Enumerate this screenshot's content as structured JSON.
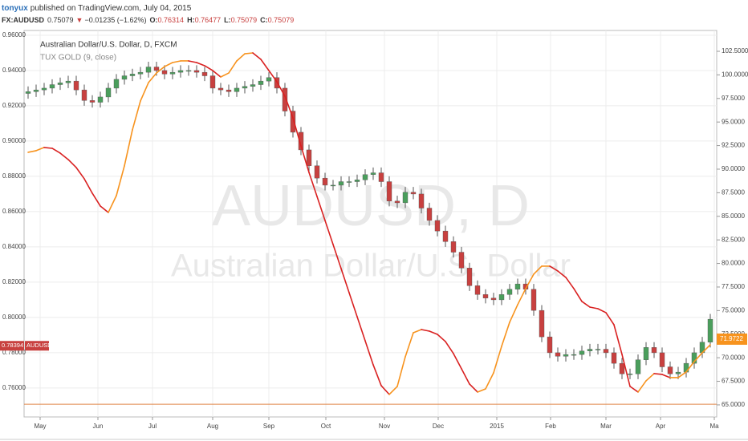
{
  "chart_data": {
    "type": "candlestick",
    "header": {
      "author": "tonyux",
      "published": "published on TradingView.com, July 04, 2015",
      "symbol": "FX:AUDUSD",
      "last": 0.75079,
      "change": "−0.01235 (−1.62%)",
      "open_label": "O:",
      "open": 0.76314,
      "high_label": "H:",
      "high": 0.76477,
      "low_label": "L:",
      "low": 0.75079,
      "close_label": "C:",
      "close": 0.75079
    },
    "legend": {
      "title": "Australian Dollar/U.S. Dollar, D, FXCM",
      "indicator": "TUX GOLD (9, close)"
    },
    "watermark": {
      "symbol": "AUDUSD, D",
      "name": "Australian Dollar/U.S. Dollar"
    },
    "up_color": "#4a9e5c",
    "down_color": "#c8403f",
    "wick_color": "#555555",
    "open": [
      0.927,
      0.928,
      0.929,
      0.93,
      0.932,
      0.933,
      0.934,
      0.929,
      0.923,
      0.922,
      0.925,
      0.93,
      0.935,
      0.937,
      0.938,
      0.939,
      0.942,
      0.94,
      0.938,
      0.939,
      0.94,
      0.94,
      0.939,
      0.937,
      0.93,
      0.929,
      0.928,
      0.93,
      0.931,
      0.932,
      0.934,
      0.936,
      0.93,
      0.917,
      0.905,
      0.895,
      0.886,
      0.879,
      0.875,
      0.875,
      0.877,
      0.877,
      0.878,
      0.881,
      0.882,
      0.877,
      0.866,
      0.865,
      0.871,
      0.87,
      0.862,
      0.855,
      0.849,
      0.843,
      0.837,
      0.828,
      0.818,
      0.813,
      0.811,
      0.81,
      0.813,
      0.816,
      0.819,
      0.816,
      0.804,
      0.789,
      0.78,
      0.778,
      0.779,
      0.779,
      0.781,
      0.782,
      0.782,
      0.78,
      0.774,
      0.768,
      0.768,
      0.776,
      0.783,
      0.78,
      0.772,
      0.768,
      0.769,
      0.774,
      0.78,
      0.786
    ],
    "high": [
      0.931,
      0.932,
      0.933,
      0.935,
      0.936,
      0.937,
      0.937,
      0.932,
      0.926,
      0.928,
      0.933,
      0.938,
      0.94,
      0.941,
      0.942,
      0.945,
      0.945,
      0.943,
      0.942,
      0.943,
      0.943,
      0.943,
      0.942,
      0.94,
      0.933,
      0.932,
      0.933,
      0.934,
      0.935,
      0.937,
      0.939,
      0.939,
      0.933,
      0.92,
      0.908,
      0.898,
      0.889,
      0.882,
      0.878,
      0.88,
      0.88,
      0.881,
      0.884,
      0.885,
      0.885,
      0.88,
      0.869,
      0.874,
      0.874,
      0.873,
      0.865,
      0.858,
      0.852,
      0.846,
      0.84,
      0.831,
      0.821,
      0.816,
      0.814,
      0.816,
      0.819,
      0.822,
      0.822,
      0.819,
      0.807,
      0.792,
      0.783,
      0.782,
      0.782,
      0.784,
      0.785,
      0.785,
      0.785,
      0.783,
      0.777,
      0.771,
      0.779,
      0.786,
      0.786,
      0.783,
      0.775,
      0.772,
      0.777,
      0.783,
      0.789,
      0.802
    ],
    "low": [
      0.924,
      0.925,
      0.926,
      0.927,
      0.929,
      0.93,
      0.926,
      0.92,
      0.919,
      0.919,
      0.922,
      0.927,
      0.932,
      0.934,
      0.935,
      0.936,
      0.937,
      0.935,
      0.935,
      0.936,
      0.937,
      0.936,
      0.934,
      0.927,
      0.926,
      0.925,
      0.925,
      0.927,
      0.928,
      0.929,
      0.931,
      0.927,
      0.914,
      0.902,
      0.892,
      0.883,
      0.876,
      0.872,
      0.872,
      0.872,
      0.874,
      0.874,
      0.875,
      0.878,
      0.874,
      0.863,
      0.862,
      0.862,
      0.867,
      0.859,
      0.852,
      0.846,
      0.84,
      0.834,
      0.825,
      0.815,
      0.81,
      0.808,
      0.807,
      0.807,
      0.81,
      0.813,
      0.813,
      0.801,
      0.786,
      0.777,
      0.775,
      0.775,
      0.776,
      0.776,
      0.778,
      0.779,
      0.777,
      0.771,
      0.765,
      0.765,
      0.765,
      0.773,
      0.777,
      0.769,
      0.765,
      0.765,
      0.766,
      0.771,
      0.777,
      0.783
    ],
    "close": [
      0.928,
      0.929,
      0.93,
      0.932,
      0.933,
      0.934,
      0.929,
      0.923,
      0.922,
      0.925,
      0.93,
      0.935,
      0.937,
      0.938,
      0.939,
      0.942,
      0.94,
      0.938,
      0.939,
      0.94,
      0.94,
      0.939,
      0.937,
      0.93,
      0.929,
      0.928,
      0.93,
      0.931,
      0.932,
      0.934,
      0.936,
      0.93,
      0.917,
      0.905,
      0.895,
      0.886,
      0.879,
      0.875,
      0.875,
      0.877,
      0.877,
      0.878,
      0.881,
      0.882,
      0.877,
      0.866,
      0.865,
      0.871,
      0.87,
      0.862,
      0.855,
      0.849,
      0.843,
      0.837,
      0.828,
      0.818,
      0.813,
      0.811,
      0.81,
      0.813,
      0.816,
      0.819,
      0.816,
      0.804,
      0.789,
      0.78,
      0.778,
      0.779,
      0.779,
      0.781,
      0.782,
      0.782,
      0.78,
      0.774,
      0.768,
      0.768,
      0.776,
      0.783,
      0.78,
      0.772,
      0.768,
      0.769,
      0.774,
      0.78,
      0.786,
      0.799
    ],
    "indicator": {
      "name": "TUX GOLD (9, close)",
      "axis": "y2",
      "rising_color": "#f7931e",
      "falling_color": "#d92121",
      "values": [
        91.79,
        91.96,
        92.3,
        92.21,
        91.7,
        91.02,
        90.17,
        88.98,
        87.45,
        86.09,
        85.41,
        87.19,
        90.34,
        94.17,
        97.23,
        99.18,
        100.2,
        100.88,
        101.31,
        101.48,
        101.48,
        101.31,
        100.97,
        100.46,
        99.78,
        100.2,
        101.48,
        102.24,
        102.33,
        101.65,
        100.46,
        99.27,
        97.74,
        95.44,
        92.47,
        89.66,
        87.11,
        84.56,
        82.01,
        79.46,
        76.9,
        74.35,
        71.8,
        69.25,
        67.04,
        66.11,
        66.96,
        70.1,
        72.65,
        72.99,
        72.82,
        72.48,
        71.72,
        70.44,
        68.83,
        67.21,
        66.36,
        66.7,
        68.4,
        71.21,
        73.76,
        75.63,
        77.33,
        78.86,
        79.71,
        79.71,
        79.2,
        78.52,
        77.33,
        75.97,
        75.37,
        75.2,
        74.78,
        73.5,
        70.36,
        66.96,
        66.36,
        67.55,
        68.32,
        68.23,
        67.89,
        67.89,
        68.49,
        69.59,
        70.53,
        71.38
      ],
      "last": 71.9722
    },
    "price_marker": {
      "value": 0.78394,
      "label": "AUDUSD"
    },
    "xlim": [
      -0.5,
      85.8
    ],
    "xticks": [
      {
        "value": 1.5,
        "label": "May"
      },
      {
        "value": 8.7,
        "label": "Jun"
      },
      {
        "value": 15.5,
        "label": "Jul"
      },
      {
        "value": 23,
        "label": "Aug"
      },
      {
        "value": 30,
        "label": "Sep"
      },
      {
        "value": 37.1,
        "label": "Oct"
      },
      {
        "value": 44.4,
        "label": "Nov"
      },
      {
        "value": 51.1,
        "label": "Dec"
      },
      {
        "value": 58.4,
        "label": "2015"
      },
      {
        "value": 65.1,
        "label": "Feb"
      },
      {
        "value": 72,
        "label": "Mar"
      },
      {
        "value": 78.8,
        "label": "Apr"
      },
      {
        "value": 85.5,
        "label": "Ma"
      }
    ],
    "ylim": [
      0.7436,
      0.9627
    ],
    "yticks": [
      {
        "value": 0.76,
        "label": "0.76000"
      },
      {
        "value": 0.78,
        "label": "0.78000"
      },
      {
        "value": 0.8,
        "label": "0.80000"
      },
      {
        "value": 0.82,
        "label": "0.82000"
      },
      {
        "value": 0.84,
        "label": "0.84000"
      },
      {
        "value": 0.86,
        "label": "0.86000"
      },
      {
        "value": 0.88,
        "label": "0.88000"
      },
      {
        "value": 0.9,
        "label": "0.90000"
      },
      {
        "value": 0.92,
        "label": "0.92000"
      },
      {
        "value": 0.94,
        "label": "0.94000"
      },
      {
        "value": 0.96,
        "label": "0.96000"
      }
    ],
    "y2lim": [
      63.72,
      104.71
    ],
    "y2ticks": [
      {
        "value": 65,
        "label": "65.0000"
      },
      {
        "value": 67.5,
        "label": "67.5000"
      },
      {
        "value": 70,
        "label": "70.0000"
      },
      {
        "value": 72.5,
        "label": "72.5000"
      },
      {
        "value": 75,
        "label": "75.0000"
      },
      {
        "value": 77.5,
        "label": "77.5000"
      },
      {
        "value": 80,
        "label": "80.0000"
      },
      {
        "value": 82.5,
        "label": "82.5000"
      },
      {
        "value": 85,
        "label": "85.0000"
      },
      {
        "value": 87.5,
        "label": "87.5000"
      },
      {
        "value": 90,
        "label": "90.0000"
      },
      {
        "value": 92.5,
        "label": "92.5000"
      },
      {
        "value": 95,
        "label": "95.0000"
      },
      {
        "value": 97.5,
        "label": "97.5000"
      },
      {
        "value": 100,
        "label": "100.0000"
      },
      {
        "value": 102.5,
        "label": "102.5000"
      }
    ],
    "grid": true
  }
}
